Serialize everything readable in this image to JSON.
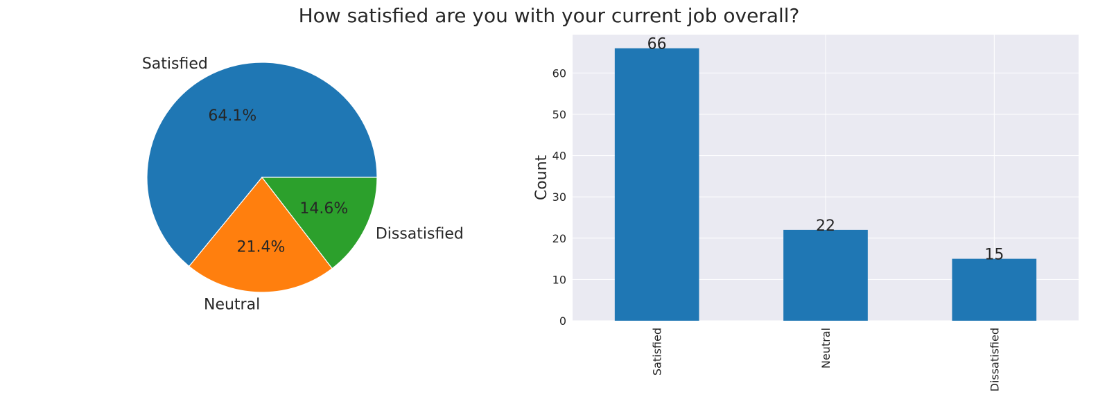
{
  "title": "How satisfied are you with your current job overall?",
  "colors": {
    "blue": "#1f77b4",
    "orange": "#ff7f0e",
    "green": "#2ca02c",
    "plot_bg": "#eaeaf2",
    "grid": "#ffffff",
    "text": "#262626"
  },
  "chart_data": [
    {
      "type": "pie",
      "categories": [
        "Satisfied",
        "Neutral",
        "Dissatisfied"
      ],
      "values": [
        66,
        22,
        15
      ],
      "percent_labels": [
        "64.1%",
        "21.4%",
        "14.6%"
      ],
      "colors": [
        "#1f77b4",
        "#ff7f0e",
        "#2ca02c"
      ],
      "start_angle_deg": 0,
      "direction": "counterclockwise"
    },
    {
      "type": "bar",
      "categories": [
        "Satisfied",
        "Neutral",
        "Dissatisfied"
      ],
      "values": [
        66,
        22,
        15
      ],
      "data_labels": [
        "66",
        "22",
        "15"
      ],
      "xlabel": "",
      "ylabel": "Count",
      "ylim": [
        0,
        69.3
      ],
      "yticks": [
        0,
        10,
        20,
        30,
        40,
        50,
        60
      ],
      "color": "#1f77b4",
      "grid": true,
      "xtick_rotation": "vertical"
    }
  ]
}
